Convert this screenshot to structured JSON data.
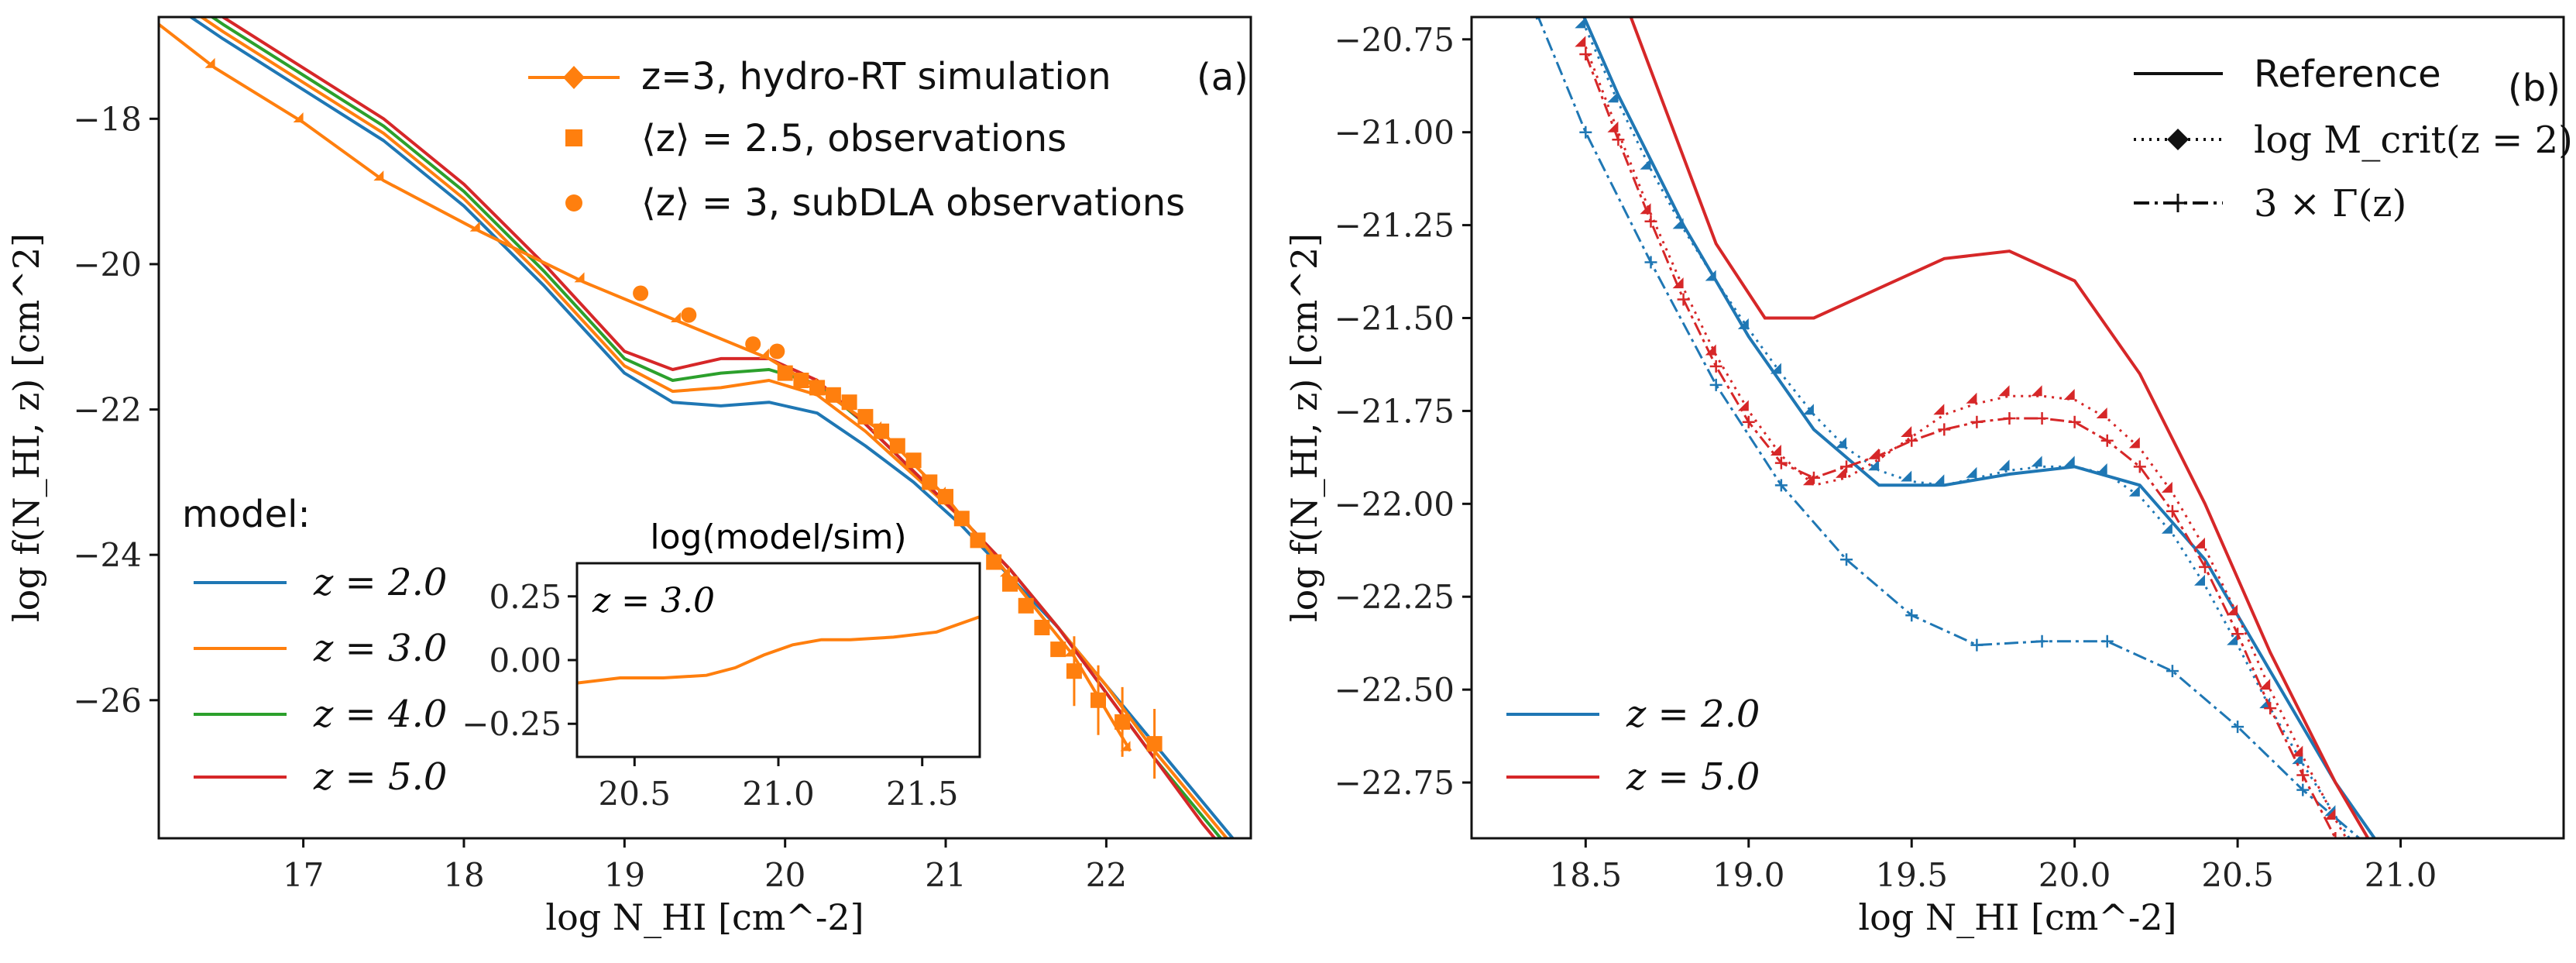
{
  "colors": {
    "z2": "#1f77b4",
    "z3": "#ff7f0e",
    "z4": "#2ca02c",
    "z5": "#d62728",
    "sim": "#ff7f0e",
    "ink": "#111111"
  },
  "chart_data": [
    {
      "id": "a",
      "type": "line",
      "panel_label": "(a)",
      "xlabel": "log N_HI [cm^-2]",
      "ylabel": "log f(N_HI, z) [cm^2]",
      "xlim": [
        16.1,
        22.9
      ],
      "ylim": [
        -27.9,
        -16.6
      ],
      "xticks": [
        17,
        18,
        19,
        20,
        21,
        22
      ],
      "yticks": [
        -18,
        -20,
        -22,
        -24,
        -26
      ],
      "model_legend_title": "model:",
      "model_series": [
        {
          "name": "z = 2.0",
          "color": "#1f77b4",
          "x": [
            16.1,
            16.5,
            17,
            17.5,
            18,
            18.5,
            19,
            19.3,
            19.6,
            19.9,
            20.2,
            20.5,
            20.8,
            21.1,
            21.4,
            21.7,
            22,
            22.3,
            22.6,
            22.9
          ],
          "y": [
            -16.3,
            -16.9,
            -17.6,
            -18.3,
            -19.2,
            -20.3,
            -21.5,
            -21.9,
            -21.95,
            -21.9,
            -22.05,
            -22.5,
            -23.0,
            -23.6,
            -24.3,
            -25.0,
            -25.8,
            -26.6,
            -27.4,
            -28.2
          ]
        },
        {
          "name": "z = 3.0",
          "color": "#ff7f0e",
          "x": [
            16.1,
            16.5,
            17,
            17.5,
            18,
            18.5,
            19,
            19.3,
            19.6,
            19.9,
            20.2,
            20.5,
            20.8,
            21.1,
            21.4,
            21.7,
            22,
            22.3,
            22.6,
            22.9
          ],
          "y": [
            -16.2,
            -16.8,
            -17.5,
            -18.2,
            -19.1,
            -20.2,
            -21.4,
            -21.75,
            -21.7,
            -21.6,
            -21.8,
            -22.3,
            -22.9,
            -23.5,
            -24.2,
            -25.0,
            -25.8,
            -26.7,
            -27.5,
            -28.3
          ]
        },
        {
          "name": "z = 4.0",
          "color": "#2ca02c",
          "x": [
            16.1,
            16.5,
            17,
            17.5,
            18,
            18.5,
            19,
            19.3,
            19.6,
            19.9,
            20.2,
            20.5,
            20.8,
            21.1,
            21.4,
            21.7,
            22,
            22.3,
            22.6,
            22.9
          ],
          "y": [
            -16.1,
            -16.7,
            -17.4,
            -18.1,
            -19.0,
            -20.1,
            -21.3,
            -21.6,
            -21.5,
            -21.45,
            -21.65,
            -22.2,
            -22.85,
            -23.5,
            -24.2,
            -25.0,
            -25.9,
            -26.8,
            -27.6,
            -28.4
          ]
        },
        {
          "name": "z = 5.0",
          "color": "#d62728",
          "x": [
            16.1,
            16.5,
            17,
            17.5,
            18,
            18.5,
            19,
            19.3,
            19.6,
            19.9,
            20.2,
            20.5,
            20.8,
            21.1,
            21.4,
            21.7,
            22,
            22.3,
            22.6,
            22.9
          ],
          "y": [
            -16.0,
            -16.6,
            -17.3,
            -18.0,
            -18.9,
            -20.0,
            -21.2,
            -21.45,
            -21.3,
            -21.3,
            -21.6,
            -22.2,
            -22.85,
            -23.5,
            -24.2,
            -25.0,
            -25.9,
            -26.8,
            -27.7,
            -28.5
          ]
        }
      ],
      "legend": [
        {
          "label": "z=3, hydro-RT simulation",
          "marker": "diamond"
        },
        {
          "label": "⟨z⟩ = 2.5, observations",
          "marker": "square"
        },
        {
          "label": "⟨z⟩ = 3, subDLA observations",
          "marker": "circle"
        }
      ],
      "sim": {
        "x": [
          16.1,
          16.45,
          17.0,
          17.5,
          18.1,
          18.75,
          19.35,
          19.9,
          20.2,
          20.6,
          21.0,
          21.4,
          21.8,
          22.15
        ],
        "y": [
          -16.7,
          -17.3,
          -18.05,
          -18.85,
          -19.55,
          -20.25,
          -20.8,
          -21.3,
          -21.7,
          -22.3,
          -23.2,
          -24.3,
          -25.4,
          -26.7
        ]
      },
      "obs_squares": {
        "x": [
          20.0,
          20.1,
          20.2,
          20.3,
          20.4,
          20.5,
          20.6,
          20.7,
          20.8,
          20.9,
          21.0,
          21.1,
          21.2,
          21.3,
          21.4,
          21.5,
          21.6,
          21.7,
          21.8,
          21.95,
          22.1,
          22.3
        ],
        "y": [
          -21.5,
          -21.6,
          -21.7,
          -21.8,
          -21.9,
          -22.1,
          -22.3,
          -22.5,
          -22.7,
          -23.0,
          -23.2,
          -23.5,
          -23.8,
          -24.1,
          -24.4,
          -24.7,
          -25.0,
          -25.3,
          -25.6,
          -26.0,
          -26.3,
          -26.6
        ]
      },
      "obs_circles": {
        "x": [
          19.1,
          19.4,
          19.8,
          19.95
        ],
        "y": [
          -20.4,
          -20.7,
          -21.1,
          -21.2
        ]
      },
      "inset": {
        "title": "log(model/sim)",
        "label": "z = 3.0",
        "xlim": [
          20.3,
          21.7
        ],
        "ylim": [
          -0.38,
          0.38
        ],
        "xticks": [
          20.5,
          21.0,
          21.5
        ],
        "yticks": [
          0.25,
          0.0,
          -0.25
        ],
        "x": [
          20.3,
          20.45,
          20.6,
          20.75,
          20.85,
          20.95,
          21.05,
          21.15,
          21.25,
          21.4,
          21.55,
          21.7
        ],
        "y": [
          -0.09,
          -0.07,
          -0.07,
          -0.06,
          -0.03,
          0.02,
          0.06,
          0.08,
          0.08,
          0.09,
          0.11,
          0.17
        ]
      }
    },
    {
      "id": "b",
      "type": "line",
      "panel_label": "(b)",
      "xlabel": "log N_HI [cm^-2]",
      "ylabel": "log f(N_HI, z) [cm^2]",
      "xlim": [
        18.15,
        21.5
      ],
      "ylim": [
        -22.9,
        -20.69
      ],
      "xticks": [
        18.5,
        19.0,
        19.5,
        20.0,
        20.5,
        21.0
      ],
      "yticks": [
        -20.75,
        -21.0,
        -21.25,
        -21.5,
        -21.75,
        -22.0,
        -22.25,
        -22.5,
        -22.75
      ],
      "style_legend": [
        {
          "label": "Reference",
          "style": "solid"
        },
        {
          "label": "log M_crit(z = 2)",
          "style": "dotted-diamond"
        },
        {
          "label": "3 × Γ(z)",
          "style": "dashdot-plus"
        }
      ],
      "color_legend": [
        {
          "label": "z = 2.0",
          "color": "#1f77b4"
        },
        {
          "label": "z = 5.0",
          "color": "#d62728"
        }
      ],
      "series": [
        {
          "name": "z=2.0 Reference",
          "color": "#1f77b4",
          "style": "solid",
          "x": [
            18.45,
            18.6,
            18.8,
            19.0,
            19.2,
            19.4,
            19.6,
            19.8,
            20.0,
            20.2,
            20.4,
            20.6,
            20.8,
            21.0
          ],
          "y": [
            -20.6,
            -20.9,
            -21.25,
            -21.55,
            -21.8,
            -21.95,
            -21.95,
            -21.92,
            -21.9,
            -21.95,
            -22.15,
            -22.45,
            -22.75,
            -23.0
          ]
        },
        {
          "name": "z=2.0 Mcrit",
          "color": "#1f77b4",
          "style": "dotted-diamond",
          "x": [
            18.5,
            18.6,
            18.7,
            18.8,
            18.9,
            19.0,
            19.1,
            19.2,
            19.3,
            19.4,
            19.5,
            19.6,
            19.7,
            19.8,
            19.9,
            20.0,
            20.1,
            20.2,
            20.3,
            20.4,
            20.5,
            20.6,
            20.7,
            20.8,
            20.9,
            21.0
          ],
          "y": [
            -20.72,
            -20.92,
            -21.1,
            -21.26,
            -21.4,
            -21.53,
            -21.65,
            -21.76,
            -21.85,
            -21.91,
            -21.94,
            -21.95,
            -21.93,
            -21.91,
            -21.9,
            -21.9,
            -21.92,
            -21.98,
            -22.08,
            -22.22,
            -22.38,
            -22.55,
            -22.7,
            -22.84,
            -22.98,
            -23.1
          ]
        },
        {
          "name": "z=2.0 3xGamma",
          "color": "#1f77b4",
          "style": "dashdot-plus",
          "x": [
            18.35,
            18.5,
            18.7,
            18.9,
            19.1,
            19.3,
            19.5,
            19.7,
            19.9,
            20.1,
            20.3,
            20.5,
            20.7,
            20.9,
            21.0
          ],
          "y": [
            -20.68,
            -21.0,
            -21.35,
            -21.68,
            -21.95,
            -22.15,
            -22.3,
            -22.38,
            -22.37,
            -22.37,
            -22.45,
            -22.6,
            -22.77,
            -22.92,
            -23.0
          ]
        },
        {
          "name": "z=5.0 Reference",
          "color": "#d62728",
          "style": "solid",
          "x": [
            18.6,
            18.75,
            18.9,
            19.05,
            19.2,
            19.4,
            19.6,
            19.8,
            20.0,
            20.2,
            20.4,
            20.6,
            20.8,
            21.0
          ],
          "y": [
            -20.6,
            -20.95,
            -21.3,
            -21.5,
            -21.5,
            -21.42,
            -21.34,
            -21.32,
            -21.4,
            -21.65,
            -22.0,
            -22.4,
            -22.75,
            -23.05
          ]
        },
        {
          "name": "z=5.0 Mcrit",
          "color": "#d62728",
          "style": "dotted-diamond",
          "x": [
            18.5,
            18.6,
            18.7,
            18.8,
            18.9,
            19.0,
            19.1,
            19.2,
            19.3,
            19.4,
            19.5,
            19.6,
            19.7,
            19.8,
            19.9,
            20.0,
            20.1,
            20.2,
            20.3,
            20.4,
            20.5,
            20.6,
            20.7,
            20.8,
            20.9
          ],
          "y": [
            -20.77,
            -21.0,
            -21.22,
            -21.42,
            -21.6,
            -21.75,
            -21.87,
            -21.95,
            -21.93,
            -21.88,
            -21.82,
            -21.76,
            -21.73,
            -21.71,
            -21.71,
            -21.72,
            -21.77,
            -21.85,
            -21.97,
            -22.12,
            -22.3,
            -22.5,
            -22.68,
            -22.85,
            -23.0
          ]
        },
        {
          "name": "z=5.0 3xGamma",
          "color": "#d62728",
          "style": "dashdot-plus",
          "x": [
            18.5,
            18.6,
            18.7,
            18.8,
            18.9,
            19.0,
            19.1,
            19.2,
            19.3,
            19.4,
            19.5,
            19.6,
            19.7,
            19.8,
            19.9,
            20.0,
            20.1,
            20.2,
            20.3,
            20.4,
            20.5,
            20.6,
            20.7,
            20.8,
            20.9
          ],
          "y": [
            -20.79,
            -21.02,
            -21.24,
            -21.45,
            -21.63,
            -21.78,
            -21.89,
            -21.93,
            -21.9,
            -21.87,
            -21.83,
            -21.8,
            -21.78,
            -21.77,
            -21.77,
            -21.78,
            -21.83,
            -21.9,
            -22.02,
            -22.17,
            -22.35,
            -22.55,
            -22.73,
            -22.9,
            -23.05
          ]
        }
      ]
    }
  ]
}
